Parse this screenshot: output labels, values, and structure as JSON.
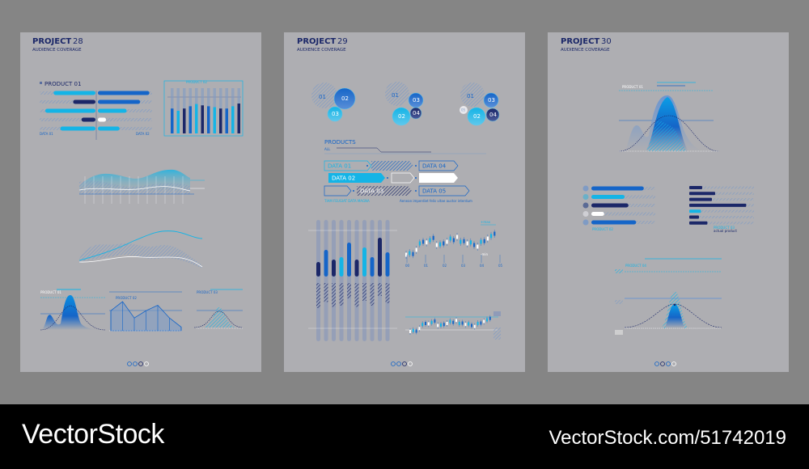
{
  "colors": {
    "background": "#858585",
    "poster": "#aeaeb2",
    "navy": "#1b2768",
    "blue": "#1565c8",
    "cyan": "#14b4e6",
    "white": "#ffffff"
  },
  "posters": [
    {
      "title_bold": "PROJECT",
      "title_num": "28",
      "subtitle": "AUDIENCE COVERAGE",
      "product_label": "PRODUCT 01",
      "left_bars": [
        0.75,
        0.4,
        0.9,
        0.25,
        0.63
      ],
      "left_colors": [
        "cyan",
        "navy",
        "cyan",
        "navy",
        "cyan"
      ],
      "right_bars": [
        0.95,
        0.78,
        0.53,
        0.15,
        0.4
      ],
      "right_colors": [
        "blue",
        "blue",
        "cyan",
        "white",
        "cyan"
      ],
      "data_left": "DATA 01",
      "data_right": "DATA 02",
      "bar_chart_label": "PRODUCT 02",
      "bar_chart_values": [
        0.55,
        0.5,
        0.55,
        0.6,
        0.65,
        0.62,
        0.6,
        0.58,
        0.55,
        0.55,
        0.6,
        0.66
      ],
      "bar_chart_colors": [
        "blue",
        "cyan",
        "navy",
        "blue",
        "cyan",
        "navy",
        "blue",
        "cyan",
        "navy",
        "blue",
        "cyan",
        "navy"
      ],
      "small_chart_labels": [
        "PRODUCT 01",
        "PRODUCT 02",
        "PRODUCT 03"
      ],
      "area_line_values": [
        0.55,
        0.8,
        0.35,
        0.55,
        0.7,
        0.35,
        0.1
      ]
    },
    {
      "title_bold": "PROJECT",
      "title_num": "29",
      "subtitle": "AUDIENCE COVERAGE",
      "circle_groups": [
        [
          "01",
          "02",
          "03"
        ],
        [
          "01",
          "03",
          "02",
          "04"
        ],
        [
          "01",
          "03",
          "02",
          "04",
          "05"
        ]
      ],
      "products_title": "PRODUCTS",
      "products_sub": "ALL",
      "data_tags": [
        "DATA 01",
        "DATA 02",
        "DATA 03",
        "DATA 04",
        "DATA 05"
      ],
      "caption_left": "TIAM FEUGIAT DATA MAGNA",
      "caption_right": "Aenean imperdiet felis vitae auctor interdum",
      "column_values": [
        0.3,
        0.55,
        0.35,
        0.4,
        0.7,
        0.35,
        0.6,
        0.4,
        0.8,
        0.5
      ],
      "candle_max": "+max",
      "candle_min": "-min",
      "candle_ticks": [
        "00",
        "01",
        "02",
        "03",
        "04",
        "05"
      ]
    },
    {
      "title_bold": "PROJECT",
      "title_num": "30",
      "subtitle": "AUDIENCE COVERAGE",
      "bell_label": "PRODUCT 01",
      "list_left_label": "PRODUCT 02",
      "list_left_values": [
        0.82,
        0.52,
        0.58,
        0.2,
        0.7
      ],
      "list_left_colors": [
        "blue",
        "cyan",
        "navy",
        "white",
        "blue"
      ],
      "list_right_label": "PRODUCT 03",
      "list_right_sub": "actual product",
      "list_right_values": [
        0.2,
        0.4,
        0.35,
        0.88,
        0.18,
        0.15,
        0.28
      ],
      "list_right_colors": [
        "navy",
        "navy",
        "navy",
        "navy",
        "cyan",
        "navy",
        "navy"
      ],
      "bell2_label": "PRODUCT 04"
    }
  ],
  "pagination": {
    "count": 4
  },
  "footer": {
    "brand": "VectorStock",
    "url": "VectorStock.com/51742019"
  }
}
